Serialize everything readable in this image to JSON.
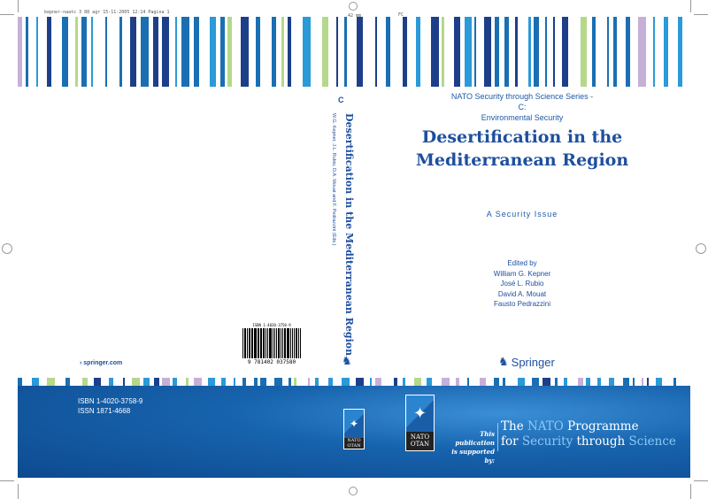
{
  "slug": {
    "left": "kepner-naatc 3 88 agr 15-11-2005 12:14 Pagina 1",
    "center": "42 mm",
    "right": "FC"
  },
  "colors": {
    "blue": "#1a6fb3",
    "light_blue": "#2a9ad8",
    "dark_blue": "#1d3f8a",
    "lavender": "#c7b0d8",
    "green": "#b5d88a",
    "band": "#1763ad"
  },
  "front": {
    "series": [
      "NATO Security through Science Series - C:",
      "Environmental Security"
    ],
    "title": [
      "Desertification in the",
      "Mediterranean Region"
    ],
    "subtitle": "A Security Issue",
    "editors": [
      "Edited by",
      "William G. Kepner",
      "José L. Rubio",
      "David A. Mouat",
      "Fausto Pedrazzini"
    ],
    "publisher": "Springer",
    "supported_by": [
      "This publication",
      "is supported by:"
    ],
    "programme": {
      "line1_a": "The ",
      "line1_b": "NATO",
      "line1_c": " Programme",
      "line2_a": "for ",
      "line2_b": "Security",
      "line2_c": " through ",
      "line2_d": "Science"
    }
  },
  "spine": {
    "series_letter": "C",
    "title": "Desertification in the Mediterranean Region",
    "authors": "W.G. Kepner, J.L. Rubio, D.A. Mouat and F. Pedrazzini (Eds.)"
  },
  "back": {
    "website": "› springer.com",
    "isbn_small": "ISBN 1-4020-3758-9",
    "barcode_number": "9 781402 037580",
    "isbn": "ISBN 1-4020-3758-9",
    "issn": "ISSN 1871-4668"
  },
  "nato_logo": {
    "line1": "NATO",
    "line2": "OTAN"
  }
}
